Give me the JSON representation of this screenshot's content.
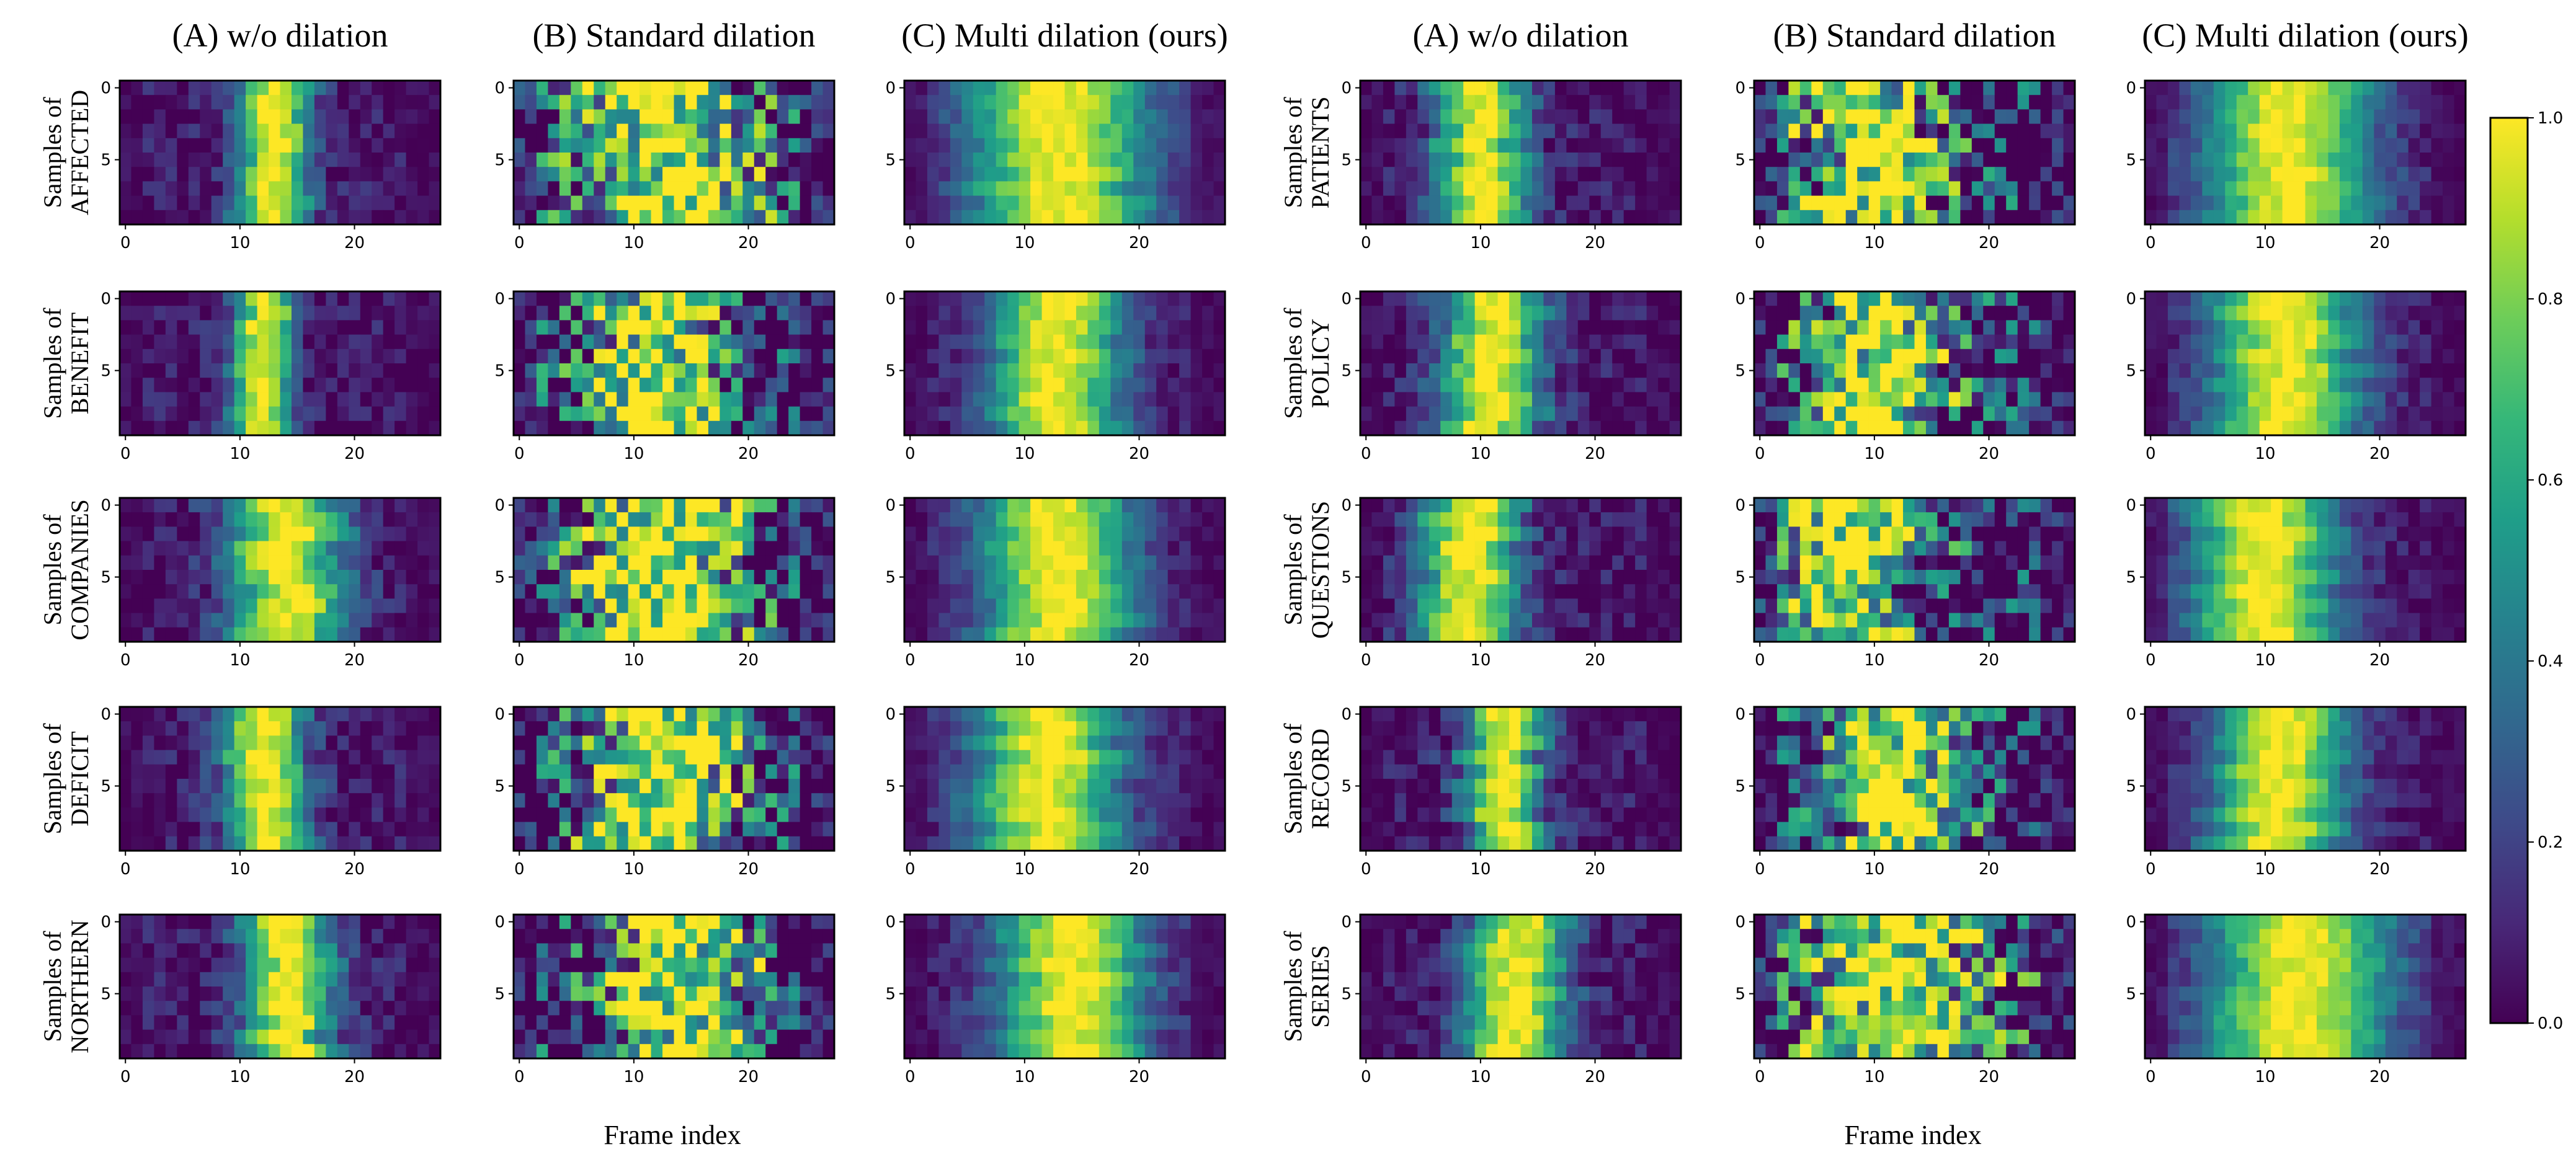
{
  "chart_data": {
    "type": "heatmap",
    "description_of_cells": "Each panel is a 10x28 grid (10 samples x 28 frame indices), values in [0,1]",
    "n_samples": 10,
    "n_frames": 28,
    "x_ticks": [
      0,
      10,
      20
    ],
    "y_ticks": [
      0,
      5
    ],
    "colorbar": {
      "range": [
        0.0,
        1.0
      ],
      "ticks": [
        "0.0",
        "0.2",
        "0.4",
        "0.6",
        "0.8",
        "1.0"
      ],
      "colormap": "viridis"
    },
    "groups": [
      {
        "xlabel": "Frame index",
        "columns": [
          {
            "title": "(A) w/o dilation",
            "sharpness": 0.0,
            "noise": 0.22
          },
          {
            "title": "(B) Standard dilation",
            "sharpness": 0.0,
            "noise": 0.55
          },
          {
            "title": "(C) Multi dilation (ours)",
            "sharpness": 0.0,
            "noise": 0.15
          }
        ],
        "rows": [
          {
            "label_line1": "Samples of",
            "label_line2": "AFFECTED",
            "center": [
              13,
              13,
              13
            ],
            "width": [
              2.2,
              6.0,
              5.5
            ]
          },
          {
            "label_line1": "Samples of",
            "label_line2": "BENEFIT",
            "center": [
              12,
              12,
              13
            ],
            "width": [
              1.8,
              4.5,
              4.0
            ]
          },
          {
            "label_line1": "Samples of",
            "label_line2": "COMPANIES",
            "center": [
              14,
              12,
              13
            ],
            "width": [
              3.5,
              5.5,
              4.5
            ]
          },
          {
            "label_line1": "Samples of",
            "label_line2": "DEFICIT",
            "center": [
              12,
              12,
              12
            ],
            "width": [
              2.5,
              5.0,
              4.5
            ]
          },
          {
            "label_line1": "Samples of",
            "label_line2": "NORTHERN",
            "center": [
              14,
              14,
              14
            ],
            "width": [
              2.8,
              4.5,
              4.5
            ]
          }
        ]
      },
      {
        "xlabel": "Frame index",
        "columns": [
          {
            "title": "(A) w/o dilation",
            "sharpness": 0.0,
            "noise": 0.22
          },
          {
            "title": "(B) Standard dilation",
            "sharpness": 0.0,
            "noise": 0.55
          },
          {
            "title": "(C) Multi dilation (ours)",
            "sharpness": 0.0,
            "noise": 0.15
          }
        ],
        "rows": [
          {
            "label_line1": "Samples of",
            "label_line2": "PATIENTS",
            "center": [
              10,
              10,
              12
            ],
            "width": [
              2.8,
              4.5,
              5.0
            ]
          },
          {
            "label_line1": "Samples of",
            "label_line2": "POLICY",
            "center": [
              11,
              10,
              12
            ],
            "width": [
              3.0,
              4.5,
              4.5
            ]
          },
          {
            "label_line1": "Samples of",
            "label_line2": "QUESTIONS",
            "center": [
              9,
              8,
              10
            ],
            "width": [
              3.0,
              4.5,
              4.5
            ]
          },
          {
            "label_line1": "Samples of",
            "label_line2": "RECORD",
            "center": [
              12,
              11,
              11
            ],
            "width": [
              2.3,
              4.0,
              4.0
            ]
          },
          {
            "label_line1": "Samples of",
            "label_line2": "SERIES",
            "center": [
              13,
              12,
              13
            ],
            "width": [
              3.0,
              6.0,
              5.5
            ]
          }
        ]
      }
    ]
  }
}
